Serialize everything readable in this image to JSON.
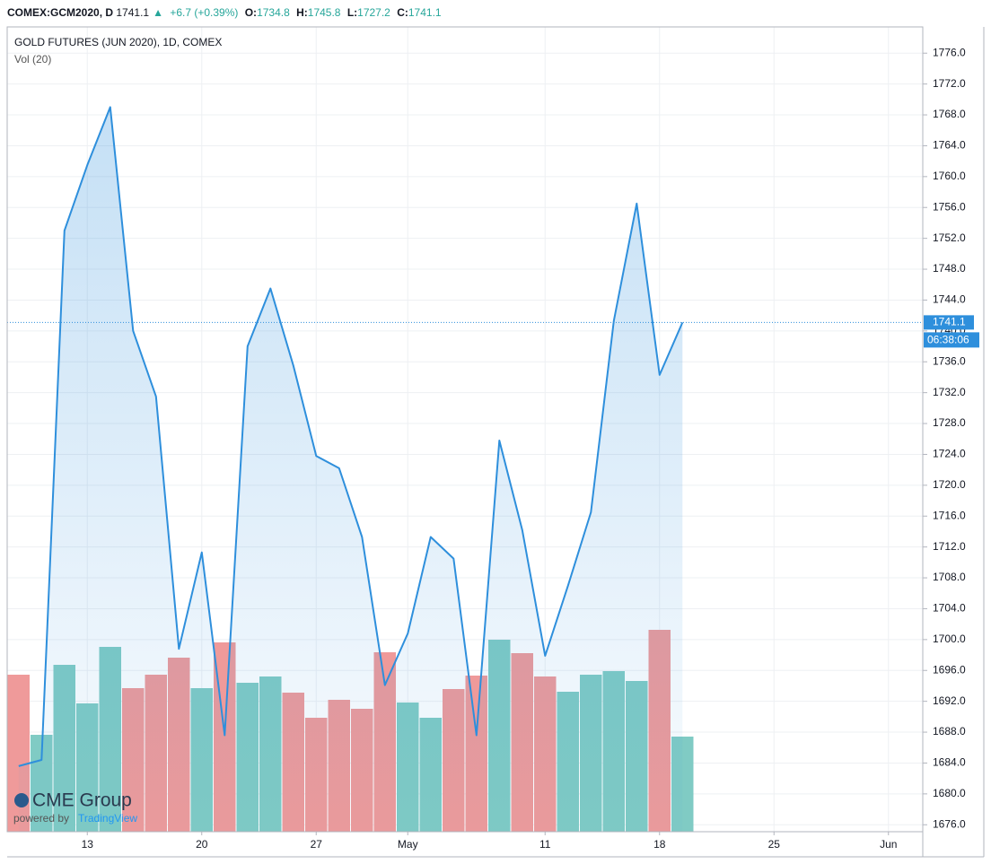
{
  "header": {
    "symbol": "COMEX:GCM2020, D",
    "last": "1741.1",
    "change": "+6.7 (+0.39%)",
    "o_label": "O:",
    "open": "1734.8",
    "h_label": "H:",
    "high": "1745.8",
    "l_label": "L:",
    "low": "1727.2",
    "c_label": "C:",
    "close": "1741.1"
  },
  "legend": {
    "title": "GOLD FUTURES (JUN 2020), 1D, COMEX",
    "volume": "Vol (20)"
  },
  "badges": {
    "price": "1741.1",
    "countdown": "06:38:06"
  },
  "logo": {
    "brand": "CME Group",
    "powered": "powered by",
    "provider": "TradingView"
  },
  "chart_data": {
    "type": "line",
    "categories": [
      null,
      null,
      null,
      "13",
      null,
      null,
      null,
      null,
      "20",
      null,
      null,
      null,
      null,
      "27",
      null,
      null,
      null,
      "May",
      null,
      null,
      null,
      null,
      null,
      "11",
      null,
      null,
      null,
      null,
      "18",
      null,
      null,
      null,
      null,
      "25",
      null,
      null,
      null,
      null,
      "Jun",
      null
    ],
    "series": [
      {
        "name": "GOLD FUTURES (JUN 2020), 1D, COMEX",
        "color": "#2e8fdc",
        "values": [
          1683.6,
          1684.4,
          1753,
          1761.5,
          1769,
          1740,
          1731.5,
          1698.8,
          1711.3,
          1687.6,
          1738,
          1745.5,
          1735.5,
          1723.8,
          1722.2,
          1713.3,
          1694.1,
          1700.8,
          1713.3,
          1710.5,
          1687.6,
          1725.8,
          1714.2,
          1697.9,
          1707,
          1716.5,
          1741.3,
          1756.5,
          1734.3,
          1741.1,
          null,
          null,
          null,
          null,
          null,
          null,
          null,
          null,
          null,
          null
        ]
      }
    ],
    "volume": {
      "name": "Vol (20)",
      "values": [
        175,
        108,
        186,
        143,
        206,
        160,
        175,
        194,
        160,
        211,
        166,
        173,
        155,
        127,
        147,
        137,
        200,
        144,
        127,
        159,
        174,
        214,
        199,
        173,
        156,
        175,
        179,
        168,
        225,
        106
      ],
      "colors": [
        "#ef9a9a",
        "#80cbc4",
        "#80cbc4",
        "#80cbc4",
        "#80cbc4",
        "#ef9a9a",
        "#ef9a9a",
        "#ef9a9a",
        "#80cbc4",
        "#ef9a9a",
        "#80cbc4",
        "#80cbc4",
        "#ef9a9a",
        "#ef9a9a",
        "#ef9a9a",
        "#ef9a9a",
        "#ef9a9a",
        "#80cbc4",
        "#80cbc4",
        "#ef9a9a",
        "#ef9a9a",
        "#80cbc4",
        "#ef9a9a",
        "#ef9a9a",
        "#80cbc4",
        "#80cbc4",
        "#80cbc4",
        "#80cbc4",
        "#ef9a9a",
        "#80cbc4"
      ]
    },
    "ylim": [
      1675.1,
      1779.4
    ],
    "yticks": [
      {
        "value": 1676,
        "label": "1676.0"
      },
      {
        "value": 1680,
        "label": "1680.0"
      },
      {
        "value": 1684,
        "label": "1684.0"
      },
      {
        "value": 1688,
        "label": "1688.0"
      },
      {
        "value": 1692,
        "label": "1692.0"
      },
      {
        "value": 1696,
        "label": "1696.0"
      },
      {
        "value": 1700,
        "label": "1700.0"
      },
      {
        "value": 1704,
        "label": "1704.0"
      },
      {
        "value": 1708,
        "label": "1708.0"
      },
      {
        "value": 1712,
        "label": "1712.0"
      },
      {
        "value": 1716,
        "label": "1716.0"
      },
      {
        "value": 1720,
        "label": "1720.0"
      },
      {
        "value": 1724,
        "label": "1724.0"
      },
      {
        "value": 1728,
        "label": "1728.0"
      },
      {
        "value": 1732,
        "label": "1732.0"
      },
      {
        "value": 1736,
        "label": "1736.0"
      },
      {
        "value": 1740,
        "label": "1740.0"
      },
      {
        "value": 1744,
        "label": "1744.0"
      },
      {
        "value": 1748,
        "label": "1748.0"
      },
      {
        "value": 1752,
        "label": "1752.0"
      },
      {
        "value": 1756,
        "label": "1756.0"
      },
      {
        "value": 1760,
        "label": "1760.0"
      },
      {
        "value": 1764,
        "label": "1764.0"
      },
      {
        "value": 1768,
        "label": "1768.0"
      },
      {
        "value": 1772,
        "label": "1772.0"
      },
      {
        "value": 1776,
        "label": "1776.0"
      }
    ],
    "current_price": 1741.1,
    "grid": true
  }
}
